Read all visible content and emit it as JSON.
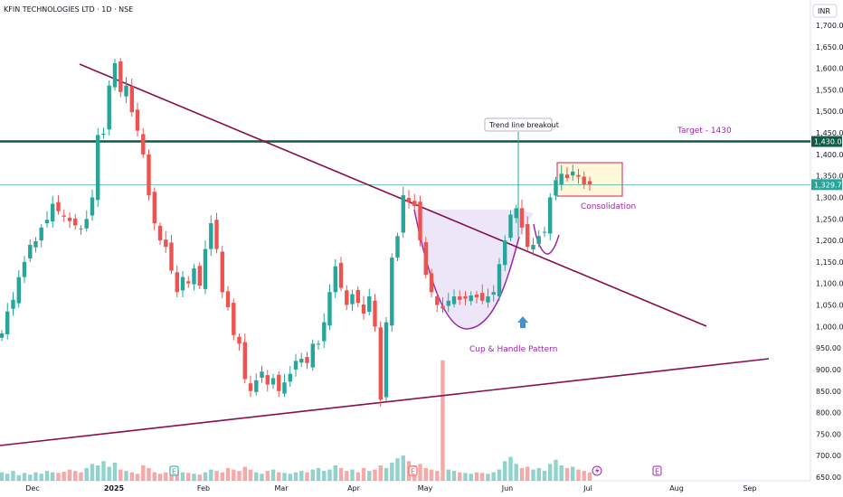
{
  "chart_data": {
    "type": "candlestick",
    "title": "KFIN TECHNOLOGIES LTD · 1D · NSE",
    "currency": "INR",
    "x_ticks": [
      "Dec",
      "2025",
      "Feb",
      "Mar",
      "Apr",
      "May",
      "Jun",
      "Jul",
      "Aug",
      "Sep"
    ],
    "y_ticks": [
      "650.00",
      "700.00",
      "750.00",
      "800.00",
      "850.00",
      "900.00",
      "950.00",
      "1,000.00",
      "1,050.00",
      "1,100.00",
      "1,150.00",
      "1,200.00",
      "1,250.00",
      "1,300.00",
      "1,350.00",
      "1,400.00",
      "1,450.00",
      "1,500.00",
      "1,550.00",
      "1,600.00",
      "1,650.00",
      "1,700.00"
    ],
    "ylim": [
      640,
      1730
    ],
    "price_labels": {
      "target_level": "1,430.05",
      "last_price": "1,329.70"
    },
    "levels": {
      "target": 1430.05,
      "last": 1329.7
    },
    "annotations": {
      "breakout": "Trend line breakout",
      "target": "Target - 1430",
      "consolidation": "Consolidation",
      "pattern": "Cup & Handle Pattern"
    },
    "event_markers": [
      "E",
      "E",
      "E",
      "E"
    ],
    "colors": {
      "up": "#26a69a",
      "down": "#ef5350",
      "trend": "#880e4f",
      "target_line": "#0c5c47",
      "annotation": "#9c27b0"
    },
    "closes": [
      984,
      1035,
      1062,
      1115,
      1150,
      1190,
      1198,
      1230,
      1248,
      1285,
      1268,
      1255,
      1245,
      1235,
      1228,
      1250,
      1300,
      1445,
      1448,
      1560,
      1612,
      1545,
      1560,
      1498,
      1455,
      1400,
      1305,
      1240,
      1200,
      1185,
      1130,
      1080,
      1115,
      1100,
      1135,
      1095,
      1180,
      1240,
      1180,
      1080,
      1045,
      980,
      960,
      878,
      850,
      875,
      895,
      865,
      880,
      850,
      870,
      890,
      920,
      925,
      915,
      960,
      960,
      1010,
      1080,
      1140,
      1090,
      1050,
      1075,
      1055,
      1030,
      1070,
      1000,
      830,
      1010,
      1160,
      1210,
      1305,
      1290,
      1280,
      1200,
      1120,
      1080,
      1050,
      1042,
      1060,
      1070,
      1062,
      1065,
      1072,
      1068,
      1060,
      1070,
      1080,
      1145,
      1200,
      1260,
      1275,
      1230,
      1185,
      1190,
      1210,
      1220,
      1300,
      1340,
      1355,
      1345,
      1360,
      1348,
      1330,
      1329.7
    ],
    "volumes": [
      0.3,
      0.25,
      0.35,
      0.2,
      0.28,
      0.22,
      0.3,
      0.25,
      0.35,
      0.3,
      0.28,
      0.32,
      0.4,
      0.35,
      0.3,
      0.45,
      0.6,
      0.55,
      0.7,
      0.5,
      0.65,
      0.4,
      0.35,
      0.3,
      0.25,
      0.55,
      0.45,
      0.3,
      0.25,
      0.3,
      0.5,
      0.35,
      0.3,
      0.28,
      0.25,
      0.22,
      0.3,
      0.4,
      0.35,
      0.3,
      0.45,
      0.4,
      0.35,
      0.5,
      0.4,
      0.3,
      0.25,
      0.35,
      0.4,
      0.3,
      0.28,
      0.25,
      0.3,
      0.35,
      0.3,
      0.4,
      0.45,
      0.35,
      0.4,
      0.55,
      0.45,
      0.35,
      0.4,
      0.3,
      0.45,
      0.35,
      0.4,
      0.55,
      0.45,
      0.65,
      0.8,
      0.9,
      0.7,
      0.55,
      0.6,
      0.45,
      0.4,
      0.35,
      4.3,
      0.4,
      0.35,
      0.3,
      0.28,
      0.25,
      0.3,
      0.28,
      0.25,
      0.3,
      0.4,
      0.7,
      0.85,
      0.6,
      0.45,
      0.5,
      0.4,
      0.45,
      0.35,
      0.6,
      0.75,
      0.55,
      0.45,
      0.5,
      0.4,
      0.35,
      0.3
    ]
  }
}
